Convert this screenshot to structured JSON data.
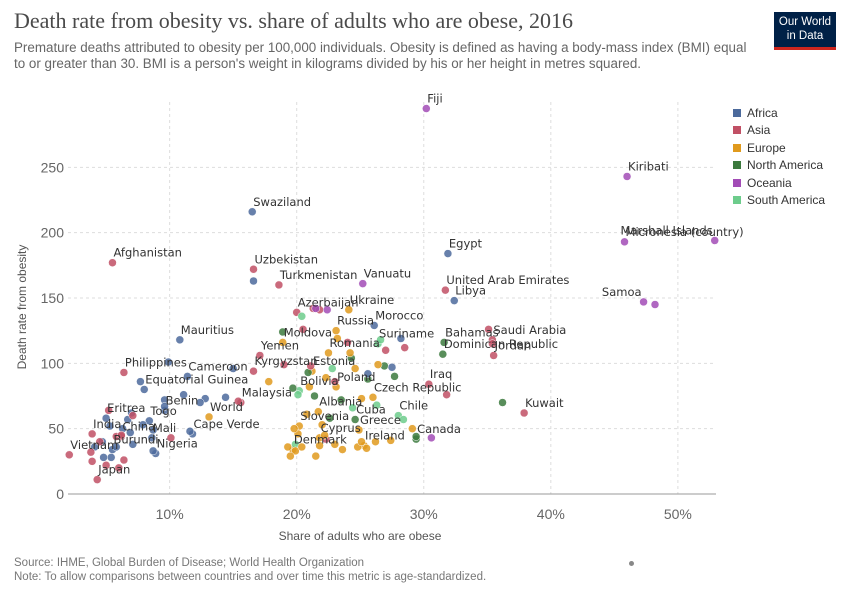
{
  "header": {
    "title": "Death rate from obesity vs. share of adults who are obese, 2016",
    "subtitle": "Premature deaths attributed to obesity per 100,000 individuals. Obesity is defined as having a body-mass index (BMI) equal to or greater than 30. BMI is a person's weight in kilograms divided by his or her height in metres squared.",
    "logo_line1": "Our World",
    "logo_line2": "in Data"
  },
  "footer": {
    "source": "Source: IHME, Global Burden of Disease; World Health Organization",
    "note": "Note: To allow comparisons between countries and over time this metric is age-standardized."
  },
  "legend": [
    {
      "name": "Africa",
      "color": "#4c6a9c"
    },
    {
      "name": "Asia",
      "color": "#c15065"
    },
    {
      "name": "Europe",
      "color": "#e09a1d"
    },
    {
      "name": "North America",
      "color": "#3c7a3e"
    },
    {
      "name": "Oceania",
      "color": "#a24cb6"
    },
    {
      "name": "South America",
      "color": "#6dcc8c"
    }
  ],
  "chart_data": {
    "type": "scatter",
    "xlabel": "Share of adults who are obese",
    "ylabel": "Death rate from obesity",
    "xlim": [
      2,
      53
    ],
    "ylim": [
      0,
      300
    ],
    "xticks": [
      10,
      20,
      30,
      40,
      50
    ],
    "xtick_labels": [
      "10%",
      "20%",
      "30%",
      "40%",
      "50%"
    ],
    "yticks": [
      0,
      50,
      100,
      150,
      200,
      250
    ],
    "grid": true,
    "legend_position": "right",
    "points": [
      {
        "label": "Fiji",
        "region": "Oceania",
        "x": 30.2,
        "y": 295
      },
      {
        "label": "Kiribati",
        "region": "Oceania",
        "x": 46.0,
        "y": 243
      },
      {
        "label": "Marshall Islands",
        "region": "Oceania",
        "x": 52.9,
        "y": 194
      },
      {
        "label": "Micronesia (country)",
        "region": "Oceania",
        "x": 45.8,
        "y": 193
      },
      {
        "label": "Samoa",
        "region": "Oceania",
        "x": 47.3,
        "y": 147
      },
      {
        "label": "Vanuatu",
        "region": "Oceania",
        "x": 25.2,
        "y": 161
      },
      {
        "label": "Swaziland",
        "region": "Africa",
        "x": 16.5,
        "y": 216
      },
      {
        "label": "Egypt",
        "region": "Africa",
        "x": 31.9,
        "y": 184
      },
      {
        "label": "Libya",
        "region": "Africa",
        "x": 32.4,
        "y": 148
      },
      {
        "label": "Morocco",
        "region": "Africa",
        "x": 26.1,
        "y": 129
      },
      {
        "label": "Mauritius",
        "region": "Africa",
        "x": 10.8,
        "y": 118
      },
      {
        "label": "Cameroon",
        "region": "Africa",
        "x": 11.4,
        "y": 90
      },
      {
        "label": "Equatorial Guinea",
        "region": "Africa",
        "x": 8.0,
        "y": 80
      },
      {
        "label": "Benin",
        "region": "Africa",
        "x": 9.6,
        "y": 64
      },
      {
        "label": "Togo",
        "region": "Africa",
        "x": 8.4,
        "y": 56
      },
      {
        "label": "Eritrea",
        "region": "Africa",
        "x": 5.0,
        "y": 58
      },
      {
        "label": "Mali",
        "region": "Africa",
        "x": 8.6,
        "y": 43
      },
      {
        "label": "Cape Verde",
        "region": "Africa",
        "x": 11.8,
        "y": 46
      },
      {
        "label": "Nigeria",
        "region": "Africa",
        "x": 8.9,
        "y": 31
      },
      {
        "label": "Burundi",
        "region": "Africa",
        "x": 5.5,
        "y": 34
      },
      {
        "label": "Afghanistan",
        "region": "Asia",
        "x": 5.5,
        "y": 177
      },
      {
        "label": "Uzbekistan",
        "region": "Asia",
        "x": 16.6,
        "y": 172
      },
      {
        "label": "Turkmenistan",
        "region": "Asia",
        "x": 18.6,
        "y": 160
      },
      {
        "label": "United Arab Emirates",
        "region": "Asia",
        "x": 31.7,
        "y": 156
      },
      {
        "label": "Azerbaijan",
        "region": "Asia",
        "x": 20.0,
        "y": 139
      },
      {
        "label": "Saudi Arabia",
        "region": "Asia",
        "x": 35.4,
        "y": 118
      },
      {
        "label": "Jordan",
        "region": "Asia",
        "x": 35.5,
        "y": 106
      },
      {
        "label": "Yemen",
        "region": "Asia",
        "x": 17.1,
        "y": 106
      },
      {
        "label": "Kyrgyzstan",
        "region": "Asia",
        "x": 16.6,
        "y": 94
      },
      {
        "label": "Philippines",
        "region": "Asia",
        "x": 6.4,
        "y": 93
      },
      {
        "label": "Malaysia",
        "region": "Asia",
        "x": 15.6,
        "y": 70
      },
      {
        "label": "India",
        "region": "Asia",
        "x": 3.9,
        "y": 46
      },
      {
        "label": "China",
        "region": "Asia",
        "x": 6.2,
        "y": 44
      },
      {
        "label": "Vietnam",
        "region": "Asia",
        "x": 2.1,
        "y": 30
      },
      {
        "label": "Japan",
        "region": "Asia",
        "x": 4.3,
        "y": 11
      },
      {
        "label": "Iraq",
        "region": "Asia",
        "x": 30.4,
        "y": 84
      },
      {
        "label": "Kuwait",
        "region": "Asia",
        "x": 37.9,
        "y": 62
      },
      {
        "label": "Ukraine",
        "region": "Europe",
        "x": 24.1,
        "y": 141
      },
      {
        "label": "Russia",
        "region": "Europe",
        "x": 23.1,
        "y": 125
      },
      {
        "label": "Moldova",
        "region": "Europe",
        "x": 18.9,
        "y": 116
      },
      {
        "label": "Romania",
        "region": "Europe",
        "x": 22.5,
        "y": 108
      },
      {
        "label": "Estonia",
        "region": "Europe",
        "x": 21.2,
        "y": 94
      },
      {
        "label": "Poland",
        "region": "Europe",
        "x": 23.1,
        "y": 82
      },
      {
        "label": "Czech Republic",
        "region": "Europe",
        "x": 26.0,
        "y": 74
      },
      {
        "label": "Albania",
        "region": "Europe",
        "x": 21.7,
        "y": 63
      },
      {
        "label": "Slovenia",
        "region": "Europe",
        "x": 20.2,
        "y": 52
      },
      {
        "label": "Cyprus",
        "region": "Europe",
        "x": 21.8,
        "y": 43
      },
      {
        "label": "Greece",
        "region": "Europe",
        "x": 24.9,
        "y": 49
      },
      {
        "label": "Denmark",
        "region": "Europe",
        "x": 19.7,
        "y": 34
      },
      {
        "label": "Ireland",
        "region": "Europe",
        "x": 25.3,
        "y": 37
      },
      {
        "label": "World",
        "region": "Europe",
        "x": 13.1,
        "y": 59
      },
      {
        "label": "Suriname",
        "region": "South America",
        "x": 26.4,
        "y": 115
      },
      {
        "label": "Bolivia",
        "region": "South America",
        "x": 20.2,
        "y": 79
      },
      {
        "label": "Chile",
        "region": "South America",
        "x": 28.0,
        "y": 60
      },
      {
        "label": "Bahamas",
        "region": "North America",
        "x": 31.6,
        "y": 116
      },
      {
        "label": "Dominican Republic",
        "region": "North America",
        "x": 31.5,
        "y": 107
      },
      {
        "label": "Cuba",
        "region": "North America",
        "x": 24.6,
        "y": 57
      },
      {
        "label": "Canada",
        "region": "North America",
        "x": 29.4,
        "y": 42
      },
      {
        "label": "",
        "region": "North America",
        "x": 36.2,
        "y": 70
      },
      {
        "label": "",
        "region": "North America",
        "x": 20.9,
        "y": 93
      },
      {
        "label": "",
        "region": "North America",
        "x": 24.3,
        "y": 104
      },
      {
        "label": "",
        "region": "North America",
        "x": 23.5,
        "y": 72
      },
      {
        "label": "",
        "region": "North America",
        "x": 21.4,
        "y": 75
      },
      {
        "label": "",
        "region": "North America",
        "x": 22.6,
        "y": 58
      },
      {
        "label": "",
        "region": "North America",
        "x": 18.9,
        "y": 124
      },
      {
        "label": "",
        "region": "North America",
        "x": 26.9,
        "y": 98
      },
      {
        "label": "",
        "region": "North America",
        "x": 25.6,
        "y": 88
      },
      {
        "label": "",
        "region": "North America",
        "x": 27.7,
        "y": 90
      },
      {
        "label": "",
        "region": "North America",
        "x": 19.7,
        "y": 81
      },
      {
        "label": "",
        "region": "North America",
        "x": 29.4,
        "y": 44
      },
      {
        "label": "",
        "region": "South America",
        "x": 20.4,
        "y": 136
      },
      {
        "label": "",
        "region": "South America",
        "x": 26.6,
        "y": 118
      },
      {
        "label": "",
        "region": "South America",
        "x": 22.8,
        "y": 96
      },
      {
        "label": "",
        "region": "South America",
        "x": 26.3,
        "y": 68
      },
      {
        "label": "",
        "region": "South America",
        "x": 20.1,
        "y": 76
      },
      {
        "label": "",
        "region": "South America",
        "x": 28.4,
        "y": 57
      },
      {
        "label": "",
        "region": "South America",
        "x": 24.4,
        "y": 66
      },
      {
        "label": "",
        "region": "South America",
        "x": 19.9,
        "y": 38
      },
      {
        "label": "",
        "region": "Africa",
        "x": 7.7,
        "y": 86
      },
      {
        "label": "",
        "region": "Africa",
        "x": 9.9,
        "y": 101
      },
      {
        "label": "",
        "region": "Africa",
        "x": 15.0,
        "y": 96
      },
      {
        "label": "",
        "region": "Africa",
        "x": 16.6,
        "y": 163
      },
      {
        "label": "",
        "region": "Africa",
        "x": 27.5,
        "y": 97
      },
      {
        "label": "",
        "region": "Africa",
        "x": 25.6,
        "y": 92
      },
      {
        "label": "",
        "region": "Africa",
        "x": 28.2,
        "y": 119
      },
      {
        "label": "",
        "region": "Africa",
        "x": 9.6,
        "y": 72
      },
      {
        "label": "",
        "region": "Africa",
        "x": 11.1,
        "y": 76
      },
      {
        "label": "",
        "region": "Africa",
        "x": 12.8,
        "y": 73
      },
      {
        "label": "",
        "region": "Africa",
        "x": 9.6,
        "y": 67
      },
      {
        "label": "",
        "region": "Africa",
        "x": 7.0,
        "y": 62
      },
      {
        "label": "",
        "region": "Africa",
        "x": 6.7,
        "y": 57
      },
      {
        "label": "",
        "region": "Africa",
        "x": 7.9,
        "y": 53
      },
      {
        "label": "",
        "region": "Africa",
        "x": 6.3,
        "y": 50
      },
      {
        "label": "",
        "region": "Africa",
        "x": 6.9,
        "y": 47
      },
      {
        "label": "",
        "region": "Africa",
        "x": 8.7,
        "y": 49
      },
      {
        "label": "",
        "region": "Africa",
        "x": 5.3,
        "y": 52
      },
      {
        "label": "",
        "region": "Africa",
        "x": 4.7,
        "y": 40
      },
      {
        "label": "",
        "region": "Africa",
        "x": 5.8,
        "y": 36
      },
      {
        "label": "",
        "region": "Africa",
        "x": 4.8,
        "y": 28
      },
      {
        "label": "",
        "region": "Africa",
        "x": 5.4,
        "y": 28
      },
      {
        "label": "",
        "region": "Africa",
        "x": 4.1,
        "y": 36
      },
      {
        "label": "",
        "region": "Africa",
        "x": 7.1,
        "y": 38
      },
      {
        "label": "",
        "region": "Africa",
        "x": 8.7,
        "y": 33
      },
      {
        "label": "",
        "region": "Africa",
        "x": 12.4,
        "y": 70
      },
      {
        "label": "",
        "region": "Africa",
        "x": 14.4,
        "y": 74
      },
      {
        "label": "",
        "region": "Africa",
        "x": 11.6,
        "y": 48
      },
      {
        "label": "",
        "region": "Asia",
        "x": 3.8,
        "y": 32
      },
      {
        "label": "",
        "region": "Asia",
        "x": 3.9,
        "y": 25
      },
      {
        "label": "",
        "region": "Asia",
        "x": 4.5,
        "y": 40
      },
      {
        "label": "",
        "region": "Asia",
        "x": 5.0,
        "y": 22
      },
      {
        "label": "",
        "region": "Asia",
        "x": 6.0,
        "y": 20
      },
      {
        "label": "",
        "region": "Asia",
        "x": 6.4,
        "y": 26
      },
      {
        "label": "",
        "region": "Asia",
        "x": 5.8,
        "y": 44
      },
      {
        "label": "",
        "region": "Asia",
        "x": 6.2,
        "y": 45
      },
      {
        "label": "",
        "region": "Asia",
        "x": 7.1,
        "y": 60
      },
      {
        "label": "",
        "region": "Asia",
        "x": 5.2,
        "y": 64
      },
      {
        "label": "",
        "region": "Asia",
        "x": 10.1,
        "y": 43
      },
      {
        "label": "",
        "region": "Asia",
        "x": 15.4,
        "y": 71
      },
      {
        "label": "",
        "region": "Asia",
        "x": 19.0,
        "y": 99
      },
      {
        "label": "",
        "region": "Asia",
        "x": 20.5,
        "y": 126
      },
      {
        "label": "",
        "region": "Asia",
        "x": 21.3,
        "y": 142
      },
      {
        "label": "",
        "region": "Asia",
        "x": 21.8,
        "y": 141
      },
      {
        "label": "",
        "region": "Asia",
        "x": 28.5,
        "y": 112
      },
      {
        "label": "",
        "region": "Asia",
        "x": 27.0,
        "y": 110
      },
      {
        "label": "",
        "region": "Asia",
        "x": 35.4,
        "y": 115
      },
      {
        "label": "",
        "region": "Asia",
        "x": 35.1,
        "y": 126
      },
      {
        "label": "",
        "region": "Asia",
        "x": 31.8,
        "y": 76
      },
      {
        "label": "",
        "region": "Asia",
        "x": 23.0,
        "y": 86
      },
      {
        "label": "",
        "region": "Asia",
        "x": 22.3,
        "y": 42
      },
      {
        "label": "",
        "region": "Asia",
        "x": 21.1,
        "y": 98
      },
      {
        "label": "",
        "region": "Asia",
        "x": 24.0,
        "y": 116
      },
      {
        "label": "",
        "region": "Europe",
        "x": 17.8,
        "y": 86
      },
      {
        "label": "",
        "region": "Europe",
        "x": 19.3,
        "y": 36
      },
      {
        "label": "",
        "region": "Europe",
        "x": 19.9,
        "y": 33
      },
      {
        "label": "",
        "region": "Europe",
        "x": 20.4,
        "y": 36
      },
      {
        "label": "",
        "region": "Europe",
        "x": 19.5,
        "y": 29
      },
      {
        "label": "",
        "region": "Europe",
        "x": 21.5,
        "y": 29
      },
      {
        "label": "",
        "region": "Europe",
        "x": 21.8,
        "y": 37
      },
      {
        "label": "",
        "region": "Europe",
        "x": 22.2,
        "y": 45
      },
      {
        "label": "",
        "region": "Europe",
        "x": 22.0,
        "y": 53
      },
      {
        "label": "",
        "region": "Europe",
        "x": 23.0,
        "y": 38
      },
      {
        "label": "",
        "region": "Europe",
        "x": 23.6,
        "y": 34
      },
      {
        "label": "",
        "region": "Europe",
        "x": 24.8,
        "y": 36
      },
      {
        "label": "",
        "region": "Europe",
        "x": 25.1,
        "y": 40
      },
      {
        "label": "",
        "region": "Europe",
        "x": 25.5,
        "y": 35
      },
      {
        "label": "",
        "region": "Europe",
        "x": 26.2,
        "y": 40
      },
      {
        "label": "",
        "region": "Europe",
        "x": 27.4,
        "y": 41
      },
      {
        "label": "",
        "region": "Europe",
        "x": 29.1,
        "y": 50
      },
      {
        "label": "",
        "region": "Europe",
        "x": 25.1,
        "y": 73
      },
      {
        "label": "",
        "region": "Europe",
        "x": 21.0,
        "y": 82
      },
      {
        "label": "",
        "region": "Europe",
        "x": 22.3,
        "y": 89
      },
      {
        "label": "",
        "region": "Europe",
        "x": 24.6,
        "y": 96
      },
      {
        "label": "",
        "region": "Europe",
        "x": 24.2,
        "y": 108
      },
      {
        "label": "",
        "region": "Europe",
        "x": 23.2,
        "y": 119
      },
      {
        "label": "",
        "region": "Europe",
        "x": 26.4,
        "y": 99
      },
      {
        "label": "",
        "region": "Europe",
        "x": 20.1,
        "y": 46
      },
      {
        "label": "",
        "region": "Europe",
        "x": 20.8,
        "y": 61
      },
      {
        "label": "",
        "region": "Europe",
        "x": 19.8,
        "y": 50
      },
      {
        "label": "",
        "region": "Oceania",
        "x": 48.2,
        "y": 145
      },
      {
        "label": "",
        "region": "Oceania",
        "x": 30.6,
        "y": 43
      },
      {
        "label": "",
        "region": "Oceania",
        "x": 21.5,
        "y": 142
      },
      {
        "label": "",
        "region": "Oceania",
        "x": 22.4,
        "y": 141
      }
    ]
  }
}
